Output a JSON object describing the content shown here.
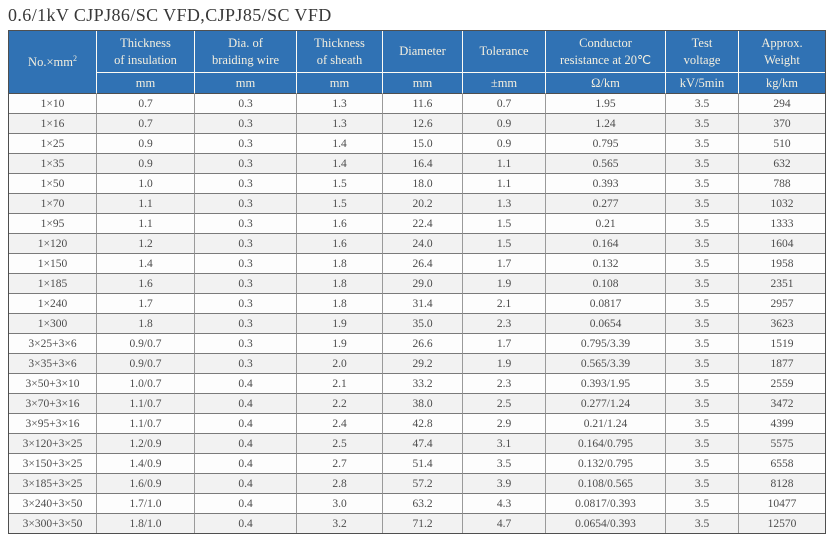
{
  "page": {
    "title": "0.6/1kV CJPJ86/SC VFD,CJPJ85/SC VFD"
  },
  "colors": {
    "header_bg": "#3072b4",
    "header_text": "#f4efdf",
    "row_stripe": "#f2f2f2",
    "title_text": "#383838",
    "cell_text": "#4c4c4c"
  },
  "table": {
    "column_keys": [
      "size",
      "insulation-thickness",
      "braiding-wire-dia",
      "sheath-thickness",
      "diameter",
      "tolerance",
      "conductor-resistance",
      "test-voltage",
      "approx-weight"
    ],
    "columns": [
      {
        "label": "No.×mm",
        "sup": "2"
      },
      {
        "label": "Thickness\nof insulation",
        "unit": "mm"
      },
      {
        "label": "Dia. of\nbraiding wire",
        "unit": "mm"
      },
      {
        "label": "Thickness\nof sheath",
        "unit": "mm"
      },
      {
        "label": "Diameter",
        "unit": "mm"
      },
      {
        "label": "Tolerance",
        "unit": "±mm"
      },
      {
        "label": "Conductor\nresistance at 20℃",
        "unit": "Ω/km"
      },
      {
        "label": "Test\nvoltage",
        "unit": "kV/5min"
      },
      {
        "label": "Approx.\nWeight",
        "unit": "kg/km"
      }
    ],
    "rows": [
      [
        "1×10",
        "0.7",
        "0.3",
        "1.3",
        "11.6",
        "0.7",
        "1.95",
        "3.5",
        "294"
      ],
      [
        "1×16",
        "0.7",
        "0.3",
        "1.3",
        "12.6",
        "0.9",
        "1.24",
        "3.5",
        "370"
      ],
      [
        "1×25",
        "0.9",
        "0.3",
        "1.4",
        "15.0",
        "0.9",
        "0.795",
        "3.5",
        "510"
      ],
      [
        "1×35",
        "0.9",
        "0.3",
        "1.4",
        "16.4",
        "1.1",
        "0.565",
        "3.5",
        "632"
      ],
      [
        "1×50",
        "1.0",
        "0.3",
        "1.5",
        "18.0",
        "1.1",
        "0.393",
        "3.5",
        "788"
      ],
      [
        "1×70",
        "1.1",
        "0.3",
        "1.5",
        "20.2",
        "1.3",
        "0.277",
        "3.5",
        "1032"
      ],
      [
        "1×95",
        "1.1",
        "0.3",
        "1.6",
        "22.4",
        "1.5",
        "0.21",
        "3.5",
        "1333"
      ],
      [
        "1×120",
        "1.2",
        "0.3",
        "1.6",
        "24.0",
        "1.5",
        "0.164",
        "3.5",
        "1604"
      ],
      [
        "1×150",
        "1.4",
        "0.3",
        "1.8",
        "26.4",
        "1.7",
        "0.132",
        "3.5",
        "1958"
      ],
      [
        "1×185",
        "1.6",
        "0.3",
        "1.8",
        "29.0",
        "1.9",
        "0.108",
        "3.5",
        "2351"
      ],
      [
        "1×240",
        "1.7",
        "0.3",
        "1.8",
        "31.4",
        "2.1",
        "0.0817",
        "3.5",
        "2957"
      ],
      [
        "1×300",
        "1.8",
        "0.3",
        "1.9",
        "35.0",
        "2.3",
        "0.0654",
        "3.5",
        "3623"
      ],
      [
        "3×25+3×6",
        "0.9/0.7",
        "0.3",
        "1.9",
        "26.6",
        "1.7",
        "0.795/3.39",
        "3.5",
        "1519"
      ],
      [
        "3×35+3×6",
        "0.9/0.7",
        "0.3",
        "2.0",
        "29.2",
        "1.9",
        "0.565/3.39",
        "3.5",
        "1877"
      ],
      [
        "3×50+3×10",
        "1.0/0.7",
        "0.4",
        "2.1",
        "33.2",
        "2.3",
        "0.393/1.95",
        "3.5",
        "2559"
      ],
      [
        "3×70+3×16",
        "1.1/0.7",
        "0.4",
        "2.2",
        "38.0",
        "2.5",
        "0.277/1.24",
        "3.5",
        "3472"
      ],
      [
        "3×95+3×16",
        "1.1/0.7",
        "0.4",
        "2.4",
        "42.8",
        "2.9",
        "0.21/1.24",
        "3.5",
        "4399"
      ],
      [
        "3×120+3×25",
        "1.2/0.9",
        "0.4",
        "2.5",
        "47.4",
        "3.1",
        "0.164/0.795",
        "3.5",
        "5575"
      ],
      [
        "3×150+3×25",
        "1.4/0.9",
        "0.4",
        "2.7",
        "51.4",
        "3.5",
        "0.132/0.795",
        "3.5",
        "6558"
      ],
      [
        "3×185+3×25",
        "1.6/0.9",
        "0.4",
        "2.8",
        "57.2",
        "3.9",
        "0.108/0.565",
        "3.5",
        "8128"
      ],
      [
        "3×240+3×50",
        "1.7/1.0",
        "0.4",
        "3.0",
        "63.2",
        "4.3",
        "0.0817/0.393",
        "3.5",
        "10477"
      ],
      [
        "3×300+3×50",
        "1.8/1.0",
        "0.4",
        "3.2",
        "71.2",
        "4.7",
        "0.0654/0.393",
        "3.5",
        "12570"
      ]
    ]
  }
}
